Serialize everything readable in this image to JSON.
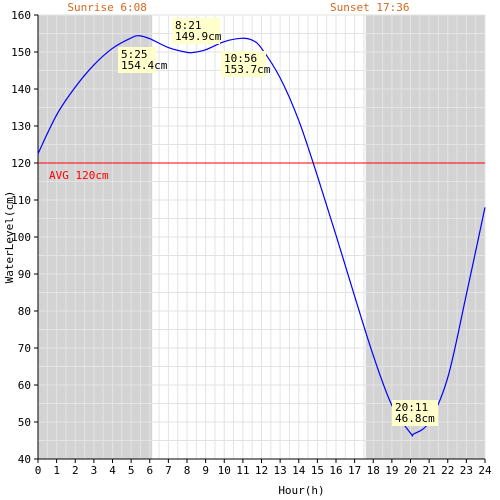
{
  "chart_data": {
    "type": "line",
    "xlabel": "Hour(h)",
    "ylabel": "WaterLevel(cm)",
    "xlim": [
      0,
      24
    ],
    "ylim": [
      40,
      160
    ],
    "x_ticks": [
      "0",
      "1",
      "2",
      "3",
      "4",
      "5",
      "6",
      "7",
      "8",
      "9",
      "10",
      "11",
      "12",
      "13",
      "14",
      "15",
      "16",
      "17",
      "18",
      "19",
      "20",
      "21",
      "22",
      "23",
      "24"
    ],
    "y_ticks": [
      "40",
      "50",
      "60",
      "70",
      "80",
      "90",
      "100",
      "110",
      "120",
      "130",
      "140",
      "150",
      "160"
    ],
    "grid": true,
    "sunrise": {
      "label": "Sunrise 6:08",
      "hour": 6.13
    },
    "sunset": {
      "label": "Sunset 17:36",
      "hour": 17.6
    },
    "average": {
      "label": "AVG 120cm",
      "value": 120
    },
    "series": [
      {
        "x": [
          0,
          1,
          2,
          3,
          4,
          5,
          5.42,
          6,
          7,
          8,
          8.35,
          9,
          10,
          10.93,
          11.5,
          12,
          13,
          14,
          15,
          16,
          17,
          18,
          19,
          20,
          20.18,
          21,
          22,
          23,
          24
        ],
        "values": [
          122.5,
          133,
          140.5,
          146.5,
          151,
          153.8,
          154.4,
          153.6,
          151.2,
          149.9,
          149.9,
          150.6,
          152.8,
          153.7,
          153.2,
          151,
          143,
          131.5,
          116.5,
          100.5,
          84,
          68,
          54.5,
          47,
          46.8,
          50,
          62,
          84.5,
          108
        ]
      }
    ],
    "annotations": [
      {
        "time": "5:25",
        "value": "154.4cm"
      },
      {
        "time": "8:21",
        "value": "149.9cm"
      },
      {
        "time": "10:56",
        "value": "153.7cm"
      },
      {
        "time": "20:11",
        "value": "46.8cm"
      }
    ],
    "colors": {
      "night": "#d3d3d3",
      "grid": "#e3e3e3",
      "line": "#0000ff",
      "avg": "#ff0000",
      "note_bg": "#ffffcc",
      "sun_text": "#d2691e"
    }
  }
}
